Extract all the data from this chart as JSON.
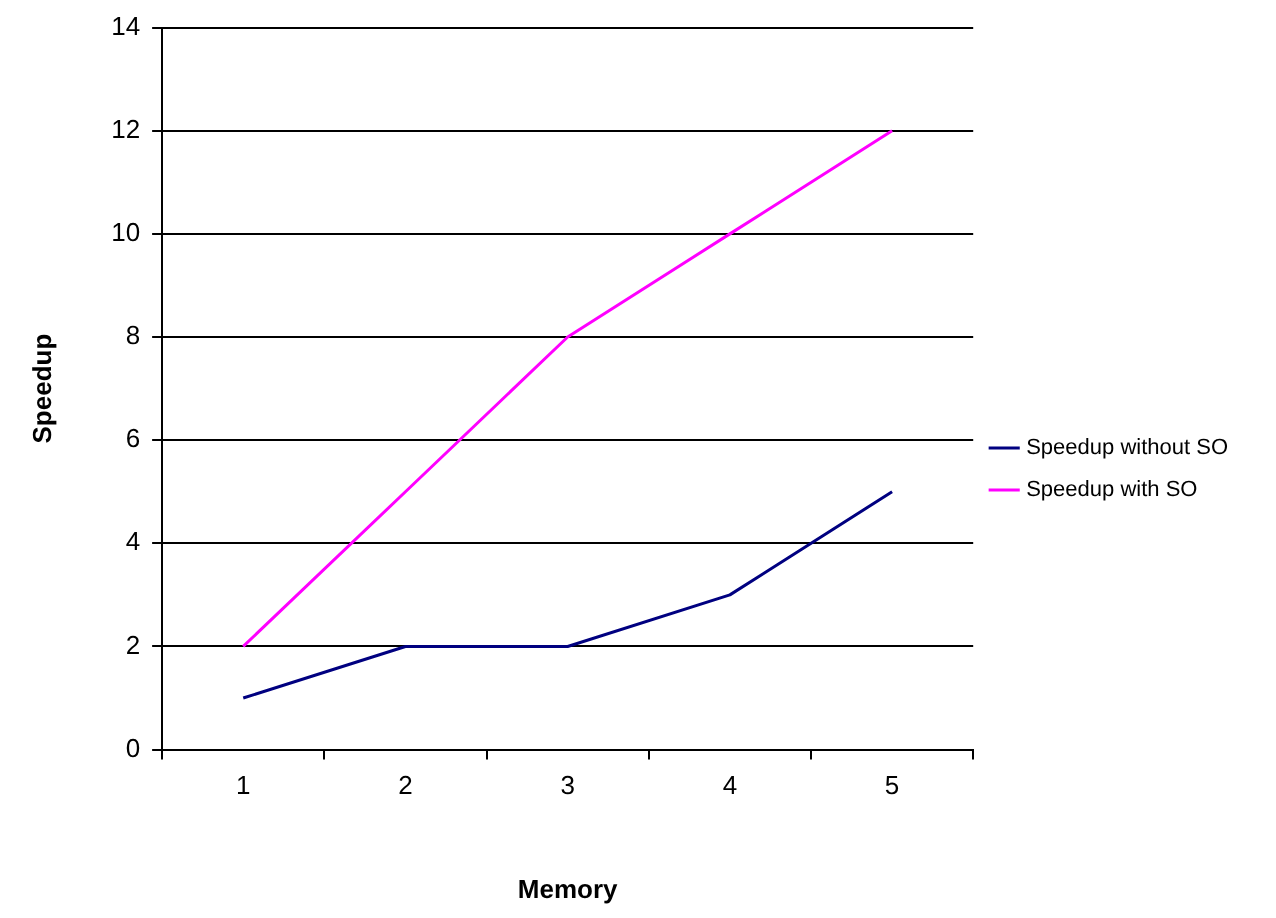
{
  "chart_data": {
    "type": "line",
    "xlabel": "Memory",
    "ylabel": "Speedup",
    "categories": [
      "1",
      "2",
      "3",
      "4",
      "5"
    ],
    "series": [
      {
        "name": "Speedup without SO",
        "color": "#000080",
        "values": [
          1,
          2,
          2,
          3,
          5
        ]
      },
      {
        "name": "Speedup with SO",
        "color": "#ff00ff",
        "values": [
          2,
          5,
          8,
          10,
          12
        ]
      }
    ],
    "ylim": [
      0,
      14
    ],
    "yticks": [
      0,
      2,
      4,
      6,
      8,
      10,
      12,
      14
    ],
    "grid": "y",
    "legend": "right",
    "marker": "none",
    "line_style": "solid"
  }
}
